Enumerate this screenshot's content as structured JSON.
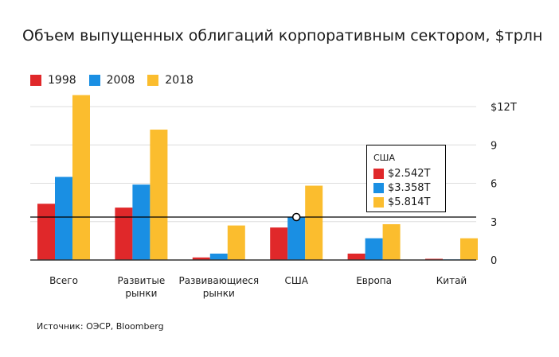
{
  "title": "Объем выпущенных облигаций корпоративным сектором, $трлн",
  "source": "Источник: ОЭСР, Bloomberg",
  "colors": {
    "s1998": "#e0282a",
    "s2008": "#1a8fe3",
    "s2018": "#fbbd2e",
    "axis": "#333333",
    "grid": "#dddddd",
    "crosshair": "#000000"
  },
  "chart_data": {
    "type": "bar",
    "title": "Объем выпущенных облигаций корпоративным сектором, $трлн",
    "categories": [
      "Всего",
      "Развитые рынки",
      "Развивающиеся рынки",
      "США",
      "Европа",
      "Китай"
    ],
    "category_lines": [
      [
        "Всего"
      ],
      [
        "Развитые",
        "рынки"
      ],
      [
        "Развивающиеся",
        "рынки"
      ],
      [
        "США"
      ],
      [
        "Европа"
      ],
      [
        "Китай"
      ]
    ],
    "series": [
      {
        "name": "1998",
        "values": [
          4.4,
          4.1,
          0.2,
          2.542,
          0.5,
          0.0
        ]
      },
      {
        "name": "2008",
        "values": [
          6.5,
          5.9,
          0.5,
          3.358,
          1.7,
          0.05
        ]
      },
      {
        "name": "2018",
        "values": [
          12.9,
          10.2,
          2.7,
          5.814,
          2.8,
          1.7
        ]
      }
    ],
    "y_ticks": [
      0,
      3,
      6,
      9,
      12
    ],
    "y_tick_labels": [
      "0",
      "3",
      "6",
      "9",
      "$12T"
    ],
    "ylim": [
      0,
      13
    ],
    "grid": true,
    "legend_position": "top-left",
    "y_axis_side": "right",
    "crosshair": {
      "y_value": 3.358,
      "category": "США",
      "tooltip_title": "США",
      "tooltip_values": [
        "$2.542T",
        "$3.358T",
        "$5.814T"
      ]
    }
  }
}
